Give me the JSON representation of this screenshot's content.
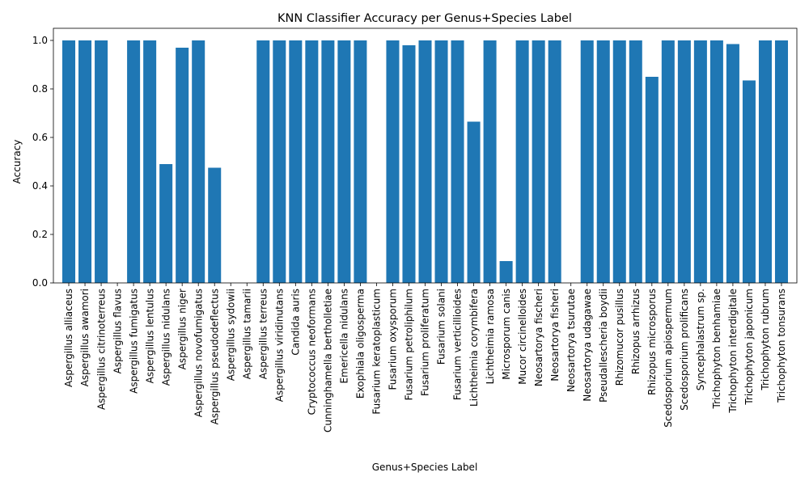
{
  "chart_data": {
    "type": "bar",
    "title": "KNN Classifier Accuracy per Genus+Species Label",
    "xlabel": "Genus+Species Label",
    "ylabel": "Accuracy",
    "ylim": [
      0,
      1.05
    ],
    "yticks": [
      0.0,
      0.2,
      0.4,
      0.6,
      0.8,
      1.0
    ],
    "ytick_labels": [
      "0.0",
      "0.2",
      "0.4",
      "0.6",
      "0.8",
      "1.0"
    ],
    "grid": false,
    "bar_color": "#1f77b4",
    "categories": [
      "Aspergillus alliaceus",
      "Aspergillus awamori",
      "Aspergillus citrinoterreus",
      "Aspergillus flavus",
      "Aspergillus fumigatus",
      "Aspergillus lentulus",
      "Aspergillus nidulans",
      "Aspergillus niger",
      "Aspergillus novofumigatus",
      "Aspergillus pseudodeflectus",
      "Aspergillus sydowii",
      "Aspergillus tamarii",
      "Aspergillus terreus",
      "Aspergillus viridinutans",
      "Candida auris",
      "Cryptococcus neoformans",
      "Cunninghamella bertholletiae",
      "Emericella nidulans",
      "Exophiala oligosperma",
      "Fusarium keratoplasticum",
      "Fusarium oxysporum",
      "Fusarium petroliphilum",
      "Fusarium proliferatum",
      "Fusarium solani",
      "Fusarium verticillioides",
      "Lichtheimia corymbifera",
      "Lichtheimia ramosa",
      "Microsporum canis",
      "Mucor circinelloides",
      "Neosartorya fischeri",
      "Neosartorya fisheri",
      "Neosartorya tsurutae",
      "Neosartorya udagawae",
      "Pseudallescheria boydii",
      "Rhizomucor pusillus",
      "Rhizopus arrhizus",
      "Rhizopus microsporus",
      "Scedosporium apiospermum",
      "Scedosporium prolificans",
      "Syncephalastrum sp.",
      "Trichophyton benhamiae",
      "Trichophyton interdigitale",
      "Trichophyton japonicum",
      "Trichophyton rubrum",
      "Trichophyton tonsurans"
    ],
    "values": [
      1.0,
      1.0,
      1.0,
      0.0,
      1.0,
      1.0,
      0.49,
      0.97,
      1.0,
      0.475,
      0.0,
      0.0,
      1.0,
      1.0,
      1.0,
      1.0,
      1.0,
      1.0,
      1.0,
      0.0,
      1.0,
      0.98,
      1.0,
      1.0,
      1.0,
      0.665,
      1.0,
      0.09,
      1.0,
      1.0,
      1.0,
      0.0,
      1.0,
      1.0,
      1.0,
      1.0,
      0.85,
      1.0,
      1.0,
      1.0,
      1.0,
      0.985,
      0.835,
      1.0,
      1.0
    ]
  }
}
